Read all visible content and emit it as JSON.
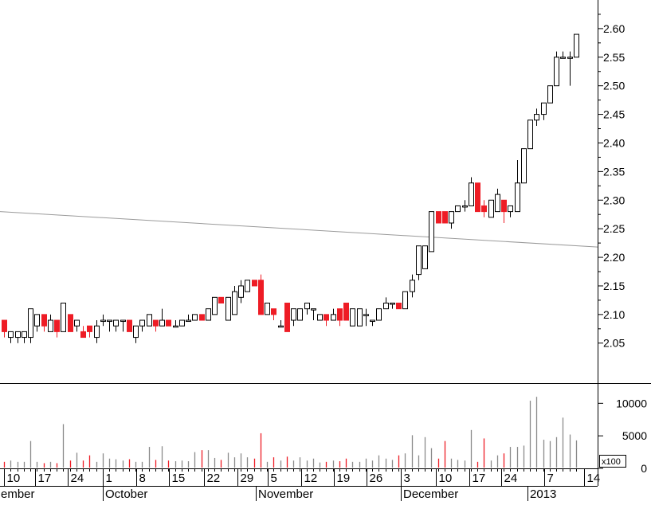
{
  "chart_data": {
    "type": "candlestick",
    "price_panel": {
      "ylim": [
        1.98,
        2.65
      ],
      "yticks": [
        2.05,
        2.1,
        2.15,
        2.2,
        2.25,
        2.3,
        2.35,
        2.4,
        2.45,
        2.5,
        2.55,
        2.6
      ],
      "ytick_labels": [
        "2.05",
        "2.10",
        "2.15",
        "2.20",
        "2.25",
        "2.30",
        "2.35",
        "2.40",
        "2.45",
        "2.50",
        "2.55",
        "2.60"
      ],
      "trendline": {
        "start": 2.28,
        "end": 2.218
      },
      "candles": [
        [
          2.09,
          2.07,
          2.09,
          2.06
        ],
        [
          2.06,
          2.07,
          2.07,
          2.05
        ],
        [
          2.06,
          2.07,
          2.07,
          2.05
        ],
        [
          2.06,
          2.07,
          2.07,
          2.05
        ],
        [
          2.06,
          2.11,
          2.11,
          2.05
        ],
        [
          2.08,
          2.1,
          2.1,
          2.07
        ],
        [
          2.1,
          2.08,
          2.1,
          2.07
        ],
        [
          2.07,
          2.09,
          2.1,
          2.07
        ],
        [
          2.09,
          2.07,
          2.09,
          2.06
        ],
        [
          2.07,
          2.12,
          2.12,
          2.07
        ],
        [
          2.1,
          2.07,
          2.1,
          2.07
        ],
        [
          2.08,
          2.09,
          2.09,
          2.07
        ],
        [
          2.07,
          2.06,
          2.08,
          2.06
        ],
        [
          2.08,
          2.07,
          2.08,
          2.06
        ],
        [
          2.06,
          2.08,
          2.09,
          2.05
        ],
        [
          2.09,
          2.09,
          2.1,
          2.08
        ],
        [
          2.09,
          2.09,
          2.09,
          2.07
        ],
        [
          2.08,
          2.09,
          2.09,
          2.07
        ],
        [
          2.09,
          2.09,
          2.09,
          2.07
        ],
        [
          2.09,
          2.07,
          2.09,
          2.07
        ],
        [
          2.06,
          2.08,
          2.08,
          2.05
        ],
        [
          2.08,
          2.09,
          2.09,
          2.07
        ],
        [
          2.08,
          2.1,
          2.1,
          2.08
        ],
        [
          2.09,
          2.08,
          2.09,
          2.07
        ],
        [
          2.08,
          2.09,
          2.11,
          2.08
        ],
        [
          2.09,
          2.08,
          2.09,
          2.08
        ],
        [
          2.08,
          2.08,
          2.09,
          2.08
        ],
        [
          2.08,
          2.09,
          2.09,
          2.08
        ],
        [
          2.09,
          2.09,
          2.1,
          2.09
        ],
        [
          2.09,
          2.1,
          2.1,
          2.09
        ],
        [
          2.1,
          2.09,
          2.1,
          2.09
        ],
        [
          2.09,
          2.11,
          2.11,
          2.09
        ],
        [
          2.1,
          2.13,
          2.13,
          2.1
        ],
        [
          2.13,
          2.12,
          2.13,
          2.12
        ],
        [
          2.09,
          2.13,
          2.13,
          2.09
        ],
        [
          2.1,
          2.14,
          2.15,
          2.1
        ],
        [
          2.13,
          2.15,
          2.16,
          2.12
        ],
        [
          2.14,
          2.16,
          2.16,
          2.14
        ],
        [
          2.16,
          2.15,
          2.16,
          2.15
        ],
        [
          2.16,
          2.1,
          2.17,
          2.1
        ],
        [
          2.1,
          2.12,
          2.12,
          2.1
        ],
        [
          2.11,
          2.1,
          2.11,
          2.09
        ],
        [
          2.08,
          2.08,
          2.09,
          2.08
        ],
        [
          2.12,
          2.07,
          2.12,
          2.07
        ],
        [
          2.09,
          2.11,
          2.11,
          2.08
        ],
        [
          2.09,
          2.11,
          2.11,
          2.09
        ],
        [
          2.11,
          2.12,
          2.12,
          2.1
        ],
        [
          2.11,
          2.11,
          2.11,
          2.09
        ],
        [
          2.09,
          2.1,
          2.1,
          2.09
        ],
        [
          2.1,
          2.09,
          2.1,
          2.08
        ],
        [
          2.09,
          2.1,
          2.11,
          2.09
        ],
        [
          2.11,
          2.09,
          2.11,
          2.08
        ],
        [
          2.12,
          2.09,
          2.12,
          2.09
        ],
        [
          2.08,
          2.11,
          2.11,
          2.08
        ],
        [
          2.08,
          2.11,
          2.11,
          2.08
        ],
        [
          2.1,
          2.1,
          2.11,
          2.08
        ],
        [
          2.09,
          2.09,
          2.09,
          2.08
        ],
        [
          2.09,
          2.11,
          2.11,
          2.09
        ],
        [
          2.11,
          2.12,
          2.13,
          2.11
        ],
        [
          2.12,
          2.12,
          2.12,
          2.11
        ],
        [
          2.12,
          2.11,
          2.12,
          2.11
        ],
        [
          2.11,
          2.14,
          2.14,
          2.11
        ],
        [
          2.14,
          2.16,
          2.17,
          2.13
        ],
        [
          2.17,
          2.22,
          2.22,
          2.16
        ],
        [
          2.18,
          2.22,
          2.22,
          2.18
        ],
        [
          2.21,
          2.28,
          2.28,
          2.21
        ],
        [
          2.28,
          2.26,
          2.28,
          2.26
        ],
        [
          2.28,
          2.26,
          2.28,
          2.26
        ],
        [
          2.26,
          2.28,
          2.28,
          2.25
        ],
        [
          2.28,
          2.29,
          2.29,
          2.28
        ],
        [
          2.29,
          2.29,
          2.3,
          2.28
        ],
        [
          2.29,
          2.33,
          2.34,
          2.29
        ],
        [
          2.33,
          2.28,
          2.33,
          2.28
        ],
        [
          2.29,
          2.28,
          2.3,
          2.27
        ],
        [
          2.27,
          2.3,
          2.3,
          2.27
        ],
        [
          2.28,
          2.31,
          2.32,
          2.28
        ],
        [
          2.3,
          2.28,
          2.3,
          2.26
        ],
        [
          2.28,
          2.29,
          2.29,
          2.27
        ],
        [
          2.28,
          2.33,
          2.37,
          2.28
        ],
        [
          2.33,
          2.39,
          2.39,
          2.33
        ],
        [
          2.39,
          2.44,
          2.44,
          2.39
        ],
        [
          2.44,
          2.45,
          2.46,
          2.43
        ],
        [
          2.45,
          2.47,
          2.47,
          2.44
        ],
        [
          2.47,
          2.5,
          2.5,
          2.47
        ],
        [
          2.5,
          2.55,
          2.56,
          2.5
        ],
        [
          2.55,
          2.55,
          2.56,
          2.55
        ],
        [
          2.55,
          2.55,
          2.56,
          2.5
        ],
        [
          2.55,
          2.59,
          2.59,
          2.55
        ]
      ]
    },
    "volume_panel": {
      "scale_label": "x100",
      "ylim": [
        0,
        12000
      ],
      "yticks": [
        0,
        5000,
        10000
      ],
      "ytick_labels": [
        "0",
        "5000",
        "10000"
      ],
      "volumes": [
        1000,
        1200,
        1000,
        1000,
        4200,
        1000,
        800,
        1000,
        800,
        6800,
        1200,
        2400,
        1200,
        2000,
        1000,
        2300,
        1500,
        1400,
        1200,
        1400,
        1000,
        1000,
        3300,
        1300,
        3400,
        1200,
        1100,
        1200,
        1100,
        2500,
        2800,
        2800,
        1600,
        1300,
        2400,
        1700,
        2300,
        1700,
        1500,
        5400,
        1000,
        1700,
        1200,
        1800,
        1200,
        1700,
        1200,
        1500,
        900,
        1000,
        1200,
        1100,
        1500,
        1000,
        1000,
        1500,
        1200,
        2000,
        1500,
        1300,
        2000,
        2300,
        5100,
        2000,
        4800,
        3100,
        1500,
        4200,
        1500,
        1300,
        1200,
        5900,
        1000,
        4600,
        1200,
        2000,
        2300,
        3300,
        3300,
        3500,
        10400,
        11000,
        4400,
        4200,
        4800,
        7800,
        5200,
        4300
      ]
    },
    "x_axis": {
      "day_labels": [
        "10",
        "17",
        "24",
        "1",
        "8",
        "15",
        "22",
        "29",
        "5",
        "12",
        "19",
        "26",
        "3",
        "10",
        "17",
        "24",
        "7",
        "14"
      ],
      "month_labels": [
        "ember",
        "October",
        "November",
        "December",
        "2013"
      ]
    }
  }
}
